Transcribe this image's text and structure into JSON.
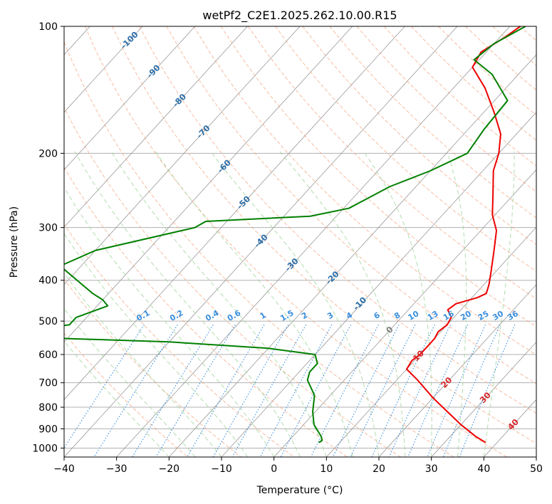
{
  "chart_data": {
    "type": "line",
    "chart_kind": "skew-T log-P sounding diagram",
    "title": "wetPf2_C2E1.2025.262.10.00.R15",
    "xlabel": "Temperature (°C)",
    "ylabel": "Pressure (hPa)",
    "xlim": [
      -40,
      50
    ],
    "ylim": [
      1050,
      100
    ],
    "x_ticks": [
      -40,
      -30,
      -20,
      -10,
      0,
      10,
      20,
      30,
      40,
      50
    ],
    "x_tick_labels": [
      "−40",
      "−30",
      "−20",
      "−10",
      "0",
      "10",
      "20",
      "30",
      "40",
      "50"
    ],
    "y_ticks": [
      100,
      200,
      300,
      400,
      500,
      600,
      700,
      800,
      900,
      1000
    ],
    "y_tick_labels": [
      "100",
      "200",
      "300",
      "400",
      "500",
      "600",
      "700",
      "800",
      "900",
      "1000"
    ],
    "colors": {
      "temperature": "#ee0000",
      "dewpoint": "#008000",
      "isotherm": "#999999",
      "grid": "#b0b0b0",
      "dry_adiabat": "#f4a582",
      "moist_adiabat": "#a6d6a0",
      "mixing_ratio": "#3a8fdd",
      "neg_isotherm_label": "#2f6fa8",
      "pos_isotherm_label": "#d62728",
      "zero_isotherm_label": "#808080",
      "saturation_curve": "#c8b08a"
    },
    "isotherm_labels": {
      "negative": [
        "-100",
        "-90",
        "-80",
        "-70",
        "-60",
        "-50",
        "-40",
        "-30",
        "-20",
        "-10"
      ],
      "zero": "0",
      "positive": [
        "10",
        "20",
        "30",
        "40"
      ]
    },
    "mixing_ratio_labels": [
      "0.1",
      "0.2",
      "0.4",
      "0.6",
      "1",
      "1.5",
      "2",
      "3",
      "4",
      "6",
      "8",
      "10",
      "13",
      "16",
      "20",
      "25",
      "30",
      "36"
    ],
    "series": [
      {
        "name": "Temperature",
        "color": "#ee0000",
        "points": [
          [
            37.8,
            970
          ],
          [
            35.0,
            940
          ],
          [
            30.0,
            880
          ],
          [
            26.0,
            830
          ],
          [
            20.0,
            760
          ],
          [
            14.0,
            690
          ],
          [
            10.0,
            650
          ],
          [
            9.5,
            620
          ],
          [
            10.0,
            600
          ],
          [
            10.0,
            570
          ],
          [
            10.0,
            550
          ],
          [
            9.5,
            530
          ],
          [
            10.0,
            510
          ],
          [
            9.5,
            490
          ],
          [
            7.5,
            470
          ],
          [
            8.0,
            455
          ],
          [
            11.0,
            440
          ],
          [
            12.0,
            430
          ],
          [
            11.0,
            410
          ],
          [
            9.0,
            380
          ],
          [
            6.0,
            340
          ],
          [
            3.0,
            305
          ],
          [
            -0.5,
            280
          ],
          [
            -4.0,
            250
          ],
          [
            -8.0,
            220
          ],
          [
            -10.0,
            200
          ],
          [
            -13.0,
            180
          ],
          [
            -18.0,
            160
          ],
          [
            -24.0,
            140
          ],
          [
            -30.0,
            125
          ],
          [
            -31.0,
            115
          ],
          [
            -29.0,
            106
          ],
          [
            -28.0,
            100
          ]
        ]
      },
      {
        "name": "Dewpoint",
        "color": "#008000",
        "points": [
          [
            6.0,
            970
          ],
          [
            6.3,
            960
          ],
          [
            5.5,
            940
          ],
          [
            2.0,
            880
          ],
          [
            -0.5,
            820
          ],
          [
            -3.0,
            750
          ],
          [
            -7.0,
            690
          ],
          [
            -8.0,
            660
          ],
          [
            -8.0,
            630
          ],
          [
            -10.0,
            600
          ],
          [
            -20.0,
            580
          ],
          [
            -40.0,
            560
          ],
          [
            -60.0,
            550
          ],
          [
            -67.0,
            545
          ],
          [
            -68.0,
            535
          ],
          [
            -68.0,
            525
          ],
          [
            -62.0,
            510
          ],
          [
            -62.0,
            490
          ],
          [
            -58.0,
            460
          ],
          [
            -60.0,
            445
          ],
          [
            -63.0,
            430
          ],
          [
            -74.0,
            370
          ],
          [
            -70.0,
            340
          ],
          [
            -55.0,
            300
          ],
          [
            -54.0,
            290
          ],
          [
            -35.0,
            282
          ],
          [
            -29.0,
            270
          ],
          [
            -25.0,
            240
          ],
          [
            -20.0,
            220
          ],
          [
            -16.0,
            200
          ],
          [
            -17.0,
            175
          ],
          [
            -17.5,
            150
          ],
          [
            -25.0,
            130
          ],
          [
            -31.0,
            120
          ],
          [
            -30.0,
            110
          ],
          [
            -27.0,
            100
          ]
        ]
      }
    ]
  }
}
